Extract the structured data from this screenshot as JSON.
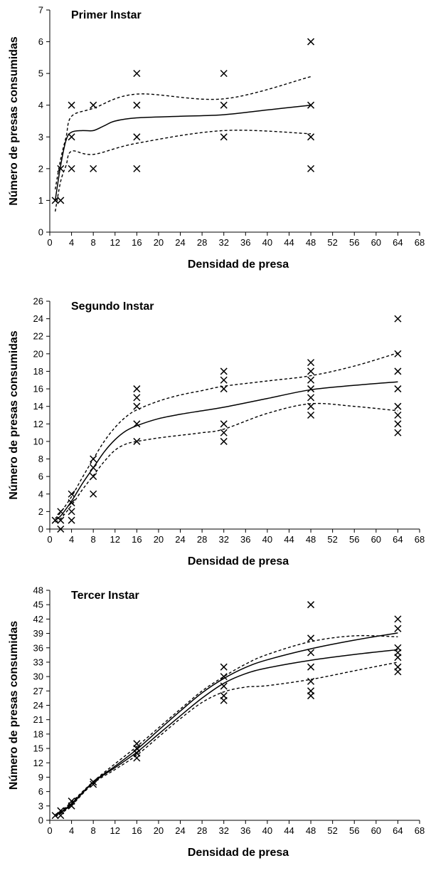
{
  "chart_data": [
    {
      "type": "scatter",
      "title": "Primer Instar",
      "xlabel": "Densidad de presa",
      "ylabel": "Número de presas consumidas",
      "xlim": [
        0,
        68
      ],
      "ylim": [
        0,
        7
      ],
      "xticks": [
        0,
        4,
        8,
        12,
        16,
        20,
        24,
        28,
        32,
        36,
        40,
        44,
        48,
        52,
        56,
        60,
        64,
        68
      ],
      "yticks": [
        0,
        1,
        2,
        3,
        4,
        5,
        6,
        7
      ],
      "xtick_labels": [
        "0",
        "4",
        "8",
        "12",
        "16",
        "20",
        "24",
        "28",
        "32",
        "36",
        "40",
        "44",
        "48",
        "52",
        "56",
        "60",
        "64",
        "68"
      ],
      "ytick_labels": [
        "0",
        "1",
        "2",
        "3",
        "4",
        "5",
        "6",
        "7"
      ],
      "points": [
        [
          1,
          1
        ],
        [
          2,
          1
        ],
        [
          2,
          2
        ],
        [
          4,
          2
        ],
        [
          4,
          3
        ],
        [
          4,
          4
        ],
        [
          8,
          2
        ],
        [
          8,
          4
        ],
        [
          16,
          2
        ],
        [
          16,
          3
        ],
        [
          16,
          4
        ],
        [
          16,
          5
        ],
        [
          32,
          3
        ],
        [
          32,
          4
        ],
        [
          32,
          5
        ],
        [
          48,
          2
        ],
        [
          48,
          3
        ],
        [
          48,
          4
        ],
        [
          48,
          6
        ]
      ],
      "lines": [
        {
          "style": "solid",
          "points": [
            [
              1,
              1
            ],
            [
              2,
              2.1
            ],
            [
              3,
              2.9
            ],
            [
              4,
              3.15
            ],
            [
              6,
              3.2
            ],
            [
              8,
              3.2
            ],
            [
              10,
              3.35
            ],
            [
              12,
              3.5
            ],
            [
              16,
              3.6
            ],
            [
              24,
              3.65
            ],
            [
              32,
              3.7
            ],
            [
              40,
              3.85
            ],
            [
              48,
              4.0
            ]
          ]
        },
        {
          "style": "dashed",
          "points": [
            [
              1,
              1.35
            ],
            [
              2,
              2.3
            ],
            [
              3,
              3.0
            ],
            [
              4,
              3.65
            ],
            [
              8,
              3.9
            ],
            [
              16,
              4.35
            ],
            [
              32,
              4.2
            ],
            [
              48,
              4.9
            ]
          ]
        },
        {
          "style": "dashed",
          "points": [
            [
              1,
              0.65
            ],
            [
              2,
              1.6
            ],
            [
              3,
              2.1
            ],
            [
              4,
              2.55
            ],
            [
              8,
              2.45
            ],
            [
              16,
              2.8
            ],
            [
              32,
              3.2
            ],
            [
              48,
              3.1
            ]
          ]
        }
      ]
    },
    {
      "type": "scatter",
      "title": "Segundo Instar",
      "xlabel": "Densidad de presa",
      "ylabel": "Número de presas consumidas",
      "xlim": [
        0,
        68
      ],
      "ylim": [
        0,
        26
      ],
      "xticks": [
        0,
        4,
        8,
        12,
        16,
        20,
        24,
        28,
        32,
        36,
        40,
        44,
        48,
        52,
        56,
        60,
        64,
        68
      ],
      "yticks": [
        0,
        2,
        4,
        6,
        8,
        10,
        12,
        14,
        16,
        18,
        20,
        22,
        24,
        26
      ],
      "xtick_labels": [
        "0",
        "4",
        "8",
        "12",
        "16",
        "20",
        "24",
        "28",
        "32",
        "36",
        "40",
        "44",
        "48",
        "52",
        "56",
        "60",
        "64",
        "68"
      ],
      "ytick_labels": [
        "0",
        "2",
        "4",
        "6",
        "8",
        "10",
        "12",
        "14",
        "16",
        "18",
        "20",
        "22",
        "24",
        "26"
      ],
      "points": [
        [
          1,
          1
        ],
        [
          2,
          0
        ],
        [
          2,
          1
        ],
        [
          2,
          2
        ],
        [
          4,
          1
        ],
        [
          4,
          2
        ],
        [
          4,
          3
        ],
        [
          4,
          4
        ],
        [
          8,
          4
        ],
        [
          8,
          6
        ],
        [
          8,
          7
        ],
        [
          8,
          8
        ],
        [
          16,
          10
        ],
        [
          16,
          12
        ],
        [
          16,
          14
        ],
        [
          16,
          15
        ],
        [
          16,
          16
        ],
        [
          32,
          10
        ],
        [
          32,
          11
        ],
        [
          32,
          12
        ],
        [
          32,
          16
        ],
        [
          32,
          17
        ],
        [
          32,
          18
        ],
        [
          48,
          13
        ],
        [
          48,
          14
        ],
        [
          48,
          15
        ],
        [
          48,
          16
        ],
        [
          48,
          17
        ],
        [
          48,
          18
        ],
        [
          48,
          19
        ],
        [
          64,
          11
        ],
        [
          64,
          12
        ],
        [
          64,
          13
        ],
        [
          64,
          14
        ],
        [
          64,
          16
        ],
        [
          64,
          18
        ],
        [
          64,
          20
        ],
        [
          64,
          24
        ]
      ],
      "lines": [
        {
          "style": "solid",
          "points": [
            [
              1,
              1
            ],
            [
              2,
              1.5
            ],
            [
              4,
              3.2
            ],
            [
              6,
              5.2
            ],
            [
              8,
              7.0
            ],
            [
              10,
              8.8
            ],
            [
              12,
              10.2
            ],
            [
              14,
              11.2
            ],
            [
              16,
              11.8
            ],
            [
              20,
              12.6
            ],
            [
              24,
              13.1
            ],
            [
              28,
              13.5
            ],
            [
              32,
              13.9
            ],
            [
              40,
              14.9
            ],
            [
              48,
              15.9
            ],
            [
              56,
              16.4
            ],
            [
              64,
              16.8
            ]
          ]
        },
        {
          "style": "dashed",
          "points": [
            [
              1,
              1.2
            ],
            [
              2,
              1.9
            ],
            [
              4,
              3.7
            ],
            [
              6,
              5.9
            ],
            [
              8,
              8.0
            ],
            [
              10,
              10.0
            ],
            [
              12,
              11.6
            ],
            [
              14,
              12.8
            ],
            [
              16,
              13.6
            ],
            [
              20,
              14.6
            ],
            [
              24,
              15.3
            ],
            [
              28,
              15.8
            ],
            [
              32,
              16.3
            ],
            [
              40,
              16.9
            ],
            [
              48,
              17.5
            ],
            [
              56,
              18.6
            ],
            [
              64,
              20.1
            ]
          ]
        },
        {
          "style": "dashed",
          "points": [
            [
              1,
              0.8
            ],
            [
              2,
              1.2
            ],
            [
              4,
              2.7
            ],
            [
              6,
              4.5
            ],
            [
              8,
              6.1
            ],
            [
              10,
              7.7
            ],
            [
              12,
              9.0
            ],
            [
              14,
              9.7
            ],
            [
              16,
              10.0
            ],
            [
              20,
              10.4
            ],
            [
              24,
              10.7
            ],
            [
              28,
              11.0
            ],
            [
              32,
              11.4
            ],
            [
              40,
              13.2
            ],
            [
              48,
              14.3
            ],
            [
              56,
              14.0
            ],
            [
              64,
              13.5
            ]
          ]
        }
      ]
    },
    {
      "type": "scatter",
      "title": "Tercer Instar",
      "xlabel": "Densidad de presa",
      "ylabel": "Número de presas consumidas",
      "xlim": [
        0,
        68
      ],
      "ylim": [
        0,
        48
      ],
      "xticks": [
        0,
        4,
        8,
        12,
        16,
        20,
        24,
        28,
        32,
        36,
        40,
        44,
        48,
        52,
        56,
        60,
        64,
        68
      ],
      "yticks": [
        0,
        3,
        6,
        9,
        12,
        15,
        18,
        21,
        24,
        27,
        30,
        33,
        36,
        39,
        42,
        45,
        48
      ],
      "xtick_labels": [
        "0",
        "4",
        "8",
        "12",
        "16",
        "20",
        "24",
        "28",
        "32",
        "36",
        "40",
        "44",
        "48",
        "52",
        "56",
        "60",
        "64",
        "68"
      ],
      "ytick_labels": [
        "0",
        "3",
        "6",
        "9",
        "12",
        "15",
        "18",
        "21",
        "24",
        "27",
        "30",
        "33",
        "36",
        "39",
        "42",
        "45",
        "48"
      ],
      "points": [
        [
          1,
          1
        ],
        [
          2,
          1
        ],
        [
          2,
          2
        ],
        [
          4,
          3
        ],
        [
          4,
          4
        ],
        [
          8,
          7.5
        ],
        [
          8,
          8
        ],
        [
          16,
          13
        ],
        [
          16,
          14
        ],
        [
          16,
          15
        ],
        [
          16,
          16
        ],
        [
          32,
          25
        ],
        [
          32,
          26
        ],
        [
          32,
          28
        ],
        [
          32,
          30
        ],
        [
          32,
          32
        ],
        [
          48,
          26
        ],
        [
          48,
          27
        ],
        [
          48,
          29
        ],
        [
          48,
          32
        ],
        [
          48,
          35
        ],
        [
          48,
          38
        ],
        [
          48,
          45
        ],
        [
          64,
          31
        ],
        [
          64,
          32
        ],
        [
          64,
          34
        ],
        [
          64,
          35
        ],
        [
          64,
          36
        ],
        [
          64,
          40
        ],
        [
          64,
          42
        ]
      ],
      "lines": [
        {
          "style": "solid",
          "points": [
            [
              1,
              1
            ],
            [
              2,
              1.6
            ],
            [
              4,
              3.3
            ],
            [
              8,
              7.9
            ],
            [
              12,
              11.0
            ],
            [
              16,
              14.2
            ],
            [
              20,
              18.0
            ],
            [
              24,
              21.8
            ],
            [
              28,
              25.5
            ],
            [
              32,
              28.6
            ],
            [
              36,
              30.6
            ],
            [
              40,
              31.8
            ],
            [
              48,
              33.4
            ],
            [
              56,
              34.6
            ],
            [
              64,
              35.6
            ]
          ]
        },
        {
          "style": "solid",
          "points": [
            [
              1,
              1
            ],
            [
              2,
              1.7
            ],
            [
              4,
              3.5
            ],
            [
              8,
              8.0
            ],
            [
              12,
              11.3
            ],
            [
              16,
              14.8
            ],
            [
              20,
              18.8
            ],
            [
              24,
              22.8
            ],
            [
              28,
              26.6
            ],
            [
              32,
              29.6
            ],
            [
              36,
              31.9
            ],
            [
              40,
              33.5
            ],
            [
              48,
              35.8
            ],
            [
              56,
              37.6
            ],
            [
              64,
              39.1
            ]
          ]
        },
        {
          "style": "dashed",
          "points": [
            [
              1,
              1.2
            ],
            [
              2,
              1.9
            ],
            [
              4,
              3.8
            ],
            [
              8,
              8.1
            ],
            [
              12,
              11.8
            ],
            [
              16,
              15.4
            ],
            [
              20,
              19.3
            ],
            [
              24,
              23.2
            ],
            [
              28,
              27.0
            ],
            [
              32,
              30.0
            ],
            [
              36,
              32.6
            ],
            [
              40,
              34.6
            ],
            [
              48,
              37.3
            ],
            [
              56,
              38.5
            ],
            [
              64,
              38.3
            ]
          ]
        },
        {
          "style": "dashed",
          "points": [
            [
              1,
              0.8
            ],
            [
              2,
              1.4
            ],
            [
              4,
              3.1
            ],
            [
              8,
              7.7
            ],
            [
              12,
              10.6
            ],
            [
              16,
              13.6
            ],
            [
              20,
              17.4
            ],
            [
              24,
              21.2
            ],
            [
              28,
              24.6
            ],
            [
              32,
              26.8
            ],
            [
              36,
              27.8
            ],
            [
              40,
              28.1
            ],
            [
              48,
              29.4
            ],
            [
              56,
              31.2
            ],
            [
              64,
              33.0
            ]
          ]
        }
      ]
    }
  ]
}
